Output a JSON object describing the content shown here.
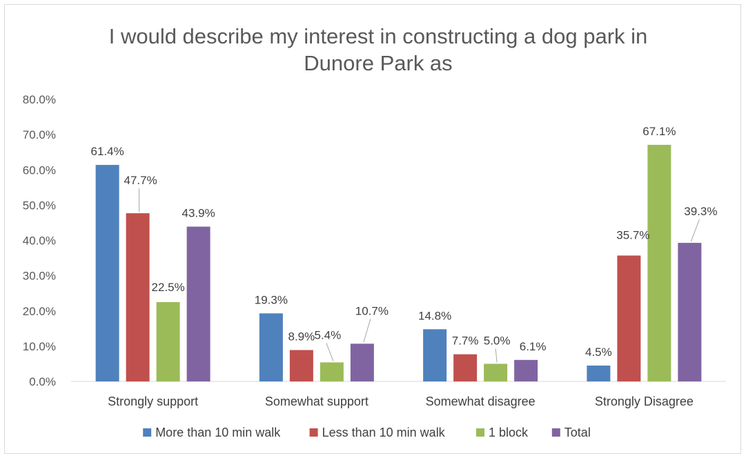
{
  "chart_data": {
    "type": "bar",
    "title_lines": [
      "I would describe my interest in constructing a dog park in",
      "Dunore Park as"
    ],
    "categories": [
      "Strongly support",
      "Somewhat support",
      "Somewhat disagree",
      "Strongly Disagree"
    ],
    "series": [
      {
        "name": "More than 10 min walk",
        "color": "#4f81bd",
        "values": [
          61.4,
          19.3,
          14.8,
          4.5
        ],
        "labels": [
          "61.4%",
          "19.3%",
          "14.8%",
          "4.5%"
        ]
      },
      {
        "name": "Less than 10 min walk",
        "color": "#c0504d",
        "values": [
          47.7,
          8.9,
          7.7,
          35.7
        ],
        "labels": [
          "47.7%",
          "8.9%",
          "7.7%",
          "35.7%"
        ]
      },
      {
        "name": "1 block",
        "color": "#9bbb59",
        "values": [
          22.5,
          5.4,
          5.0,
          67.1
        ],
        "labels": [
          "22.5%",
          "5.4%",
          "5.0%",
          "67.1%"
        ]
      },
      {
        "name": "Total",
        "color": "#8064a2",
        "values": [
          43.9,
          10.7,
          6.1,
          39.3
        ],
        "labels": [
          "43.9%",
          "10.7%",
          "6.1%",
          "39.3%"
        ]
      }
    ],
    "yticks": [
      "0.0%",
      "10.0%",
      "20.0%",
      "30.0%",
      "40.0%",
      "50.0%",
      "60.0%",
      "70.0%",
      "80.0%"
    ],
    "ylim": [
      0,
      80
    ],
    "grid": false,
    "legend_position": "bottom"
  }
}
